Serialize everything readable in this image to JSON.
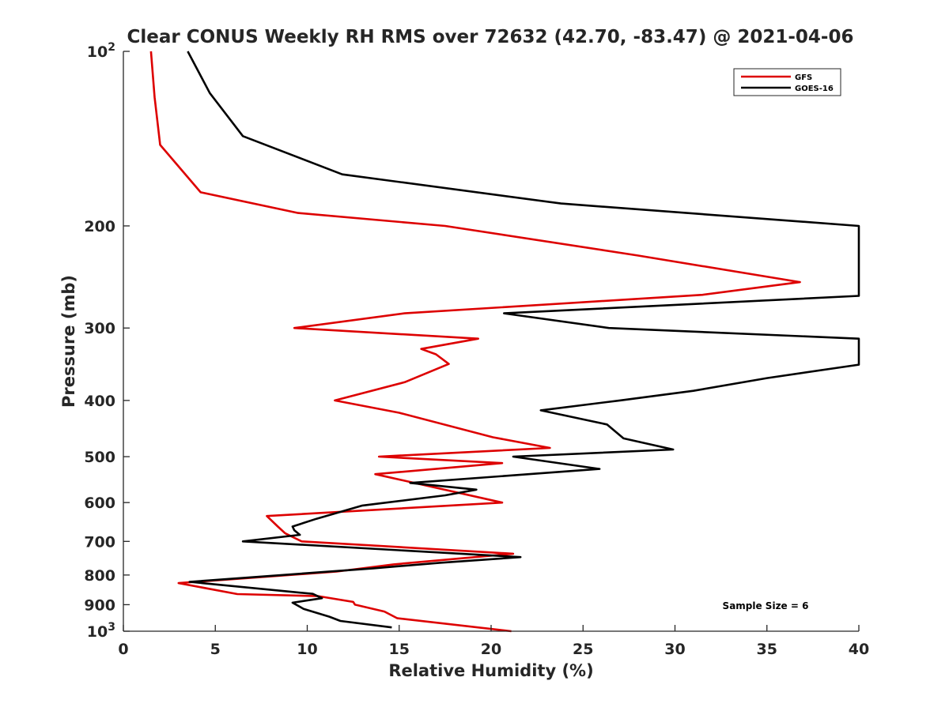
{
  "chart_data": {
    "type": "line",
    "title": "Clear CONUS Weekly RH RMS over 72632 (42.70, -83.47) @ 2021-04-06",
    "xlabel": "Relative Humidity (%)",
    "ylabel": "Pressure (mb)",
    "xlim": [
      0,
      40
    ],
    "ylim": [
      100,
      1000
    ],
    "yscale": "log",
    "y_reversed": true,
    "xticks": [
      0,
      5,
      10,
      15,
      20,
      25,
      30,
      35,
      40
    ],
    "yticks": [
      {
        "value": 100,
        "label": "10",
        "sup": "2"
      },
      {
        "value": 200,
        "label": "200",
        "sup": ""
      },
      {
        "value": 300,
        "label": "300",
        "sup": ""
      },
      {
        "value": 400,
        "label": "400",
        "sup": ""
      },
      {
        "value": 500,
        "label": "500",
        "sup": ""
      },
      {
        "value": 600,
        "label": "600",
        "sup": ""
      },
      {
        "value": 700,
        "label": "700",
        "sup": ""
      },
      {
        "value": 800,
        "label": "800",
        "sup": ""
      },
      {
        "value": 900,
        "label": "900",
        "sup": ""
      },
      {
        "value": 1000,
        "label": "10",
        "sup": "3"
      }
    ],
    "grid": false,
    "legend_position": "top-right",
    "annotation": "Sample Size = 6",
    "series": [
      {
        "name": "GFS",
        "color": "#dd0000",
        "points": [
          [
            1.5,
            100
          ],
          [
            1.7,
            120
          ],
          [
            2.0,
            145
          ],
          [
            4.2,
            175
          ],
          [
            9.5,
            190
          ],
          [
            17.5,
            200
          ],
          [
            28.0,
            225
          ],
          [
            36.8,
            250
          ],
          [
            31.5,
            263
          ],
          [
            15.3,
            283
          ],
          [
            9.3,
            300
          ],
          [
            19.3,
            313
          ],
          [
            16.2,
            326
          ],
          [
            17.0,
            333
          ],
          [
            17.7,
            346
          ],
          [
            15.3,
            372
          ],
          [
            11.5,
            400
          ],
          [
            15.0,
            420
          ],
          [
            20.1,
            463
          ],
          [
            23.2,
            483
          ],
          [
            13.9,
            500
          ],
          [
            20.6,
            513
          ],
          [
            13.7,
            536
          ],
          [
            20.6,
            600
          ],
          [
            7.8,
            633
          ],
          [
            8.4,
            660
          ],
          [
            8.8,
            678
          ],
          [
            9.7,
            700
          ],
          [
            21.2,
            735
          ],
          [
            14.7,
            767
          ],
          [
            11.6,
            789
          ],
          [
            3.0,
            826
          ],
          [
            6.2,
            863
          ],
          [
            10.6,
            870
          ],
          [
            12.5,
            890
          ],
          [
            12.6,
            900
          ],
          [
            14.2,
            925
          ],
          [
            14.9,
            950
          ],
          [
            21.1,
            1000
          ]
        ]
      },
      {
        "name": "GOES-16",
        "color": "#000000",
        "points": [
          [
            3.5,
            100
          ],
          [
            4.7,
            118
          ],
          [
            6.5,
            140
          ],
          [
            11.9,
            163
          ],
          [
            23.8,
            183
          ],
          [
            40.0,
            200
          ],
          [
            40.0,
            264
          ],
          [
            20.7,
            283
          ],
          [
            26.4,
            300
          ],
          [
            40.0,
            313
          ],
          [
            40.0,
            347
          ],
          [
            35.0,
            366
          ],
          [
            31.0,
            385
          ],
          [
            27.0,
            400
          ],
          [
            22.7,
            416
          ],
          [
            26.3,
            440
          ],
          [
            27.2,
            465
          ],
          [
            29.9,
            486
          ],
          [
            21.2,
            500
          ],
          [
            25.9,
            525
          ],
          [
            15.6,
            555
          ],
          [
            19.2,
            570
          ],
          [
            17.5,
            583
          ],
          [
            13.0,
            607
          ],
          [
            10.5,
            640
          ],
          [
            9.2,
            660
          ],
          [
            9.3,
            670
          ],
          [
            9.6,
            682
          ],
          [
            6.5,
            700
          ],
          [
            21.6,
            745
          ],
          [
            17.2,
            762
          ],
          [
            13.6,
            779
          ],
          [
            3.6,
            822
          ],
          [
            10.3,
            862
          ],
          [
            10.8,
            877
          ],
          [
            9.2,
            893
          ],
          [
            9.8,
            915
          ],
          [
            11.2,
            944
          ],
          [
            11.8,
            960
          ],
          [
            14.6,
            985
          ]
        ]
      }
    ]
  }
}
